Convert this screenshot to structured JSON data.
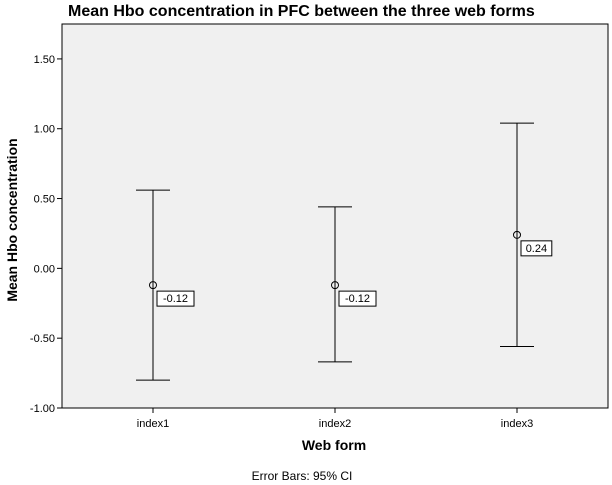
{
  "chart_data": {
    "type": "errorbar",
    "title": "Mean Hbo concentration in PFC between the three web forms",
    "xlabel": "Web form",
    "ylabel": "Mean Hbo concentration",
    "footnote": "Error Bars: 95% CI",
    "ylim": [
      -1.0,
      1.75
    ],
    "yticks": [
      -1.0,
      -0.5,
      0.0,
      0.5,
      1.0,
      1.5
    ],
    "ytick_labels": [
      "-1.00",
      "-0.50",
      "0.00",
      "0.50",
      "1.00",
      "1.50"
    ],
    "grid": false,
    "categories": [
      "index1",
      "index2",
      "index3"
    ],
    "means": [
      -0.12,
      -0.12,
      0.24
    ],
    "mean_labels": [
      "-0.12",
      "-0.12",
      "0.24"
    ],
    "ci_lower": [
      -0.8,
      -0.67,
      -0.56
    ],
    "ci_upper": [
      0.56,
      0.44,
      1.04
    ],
    "colors": {
      "plot_background": "#f0f0f0",
      "line": "#000000"
    }
  }
}
